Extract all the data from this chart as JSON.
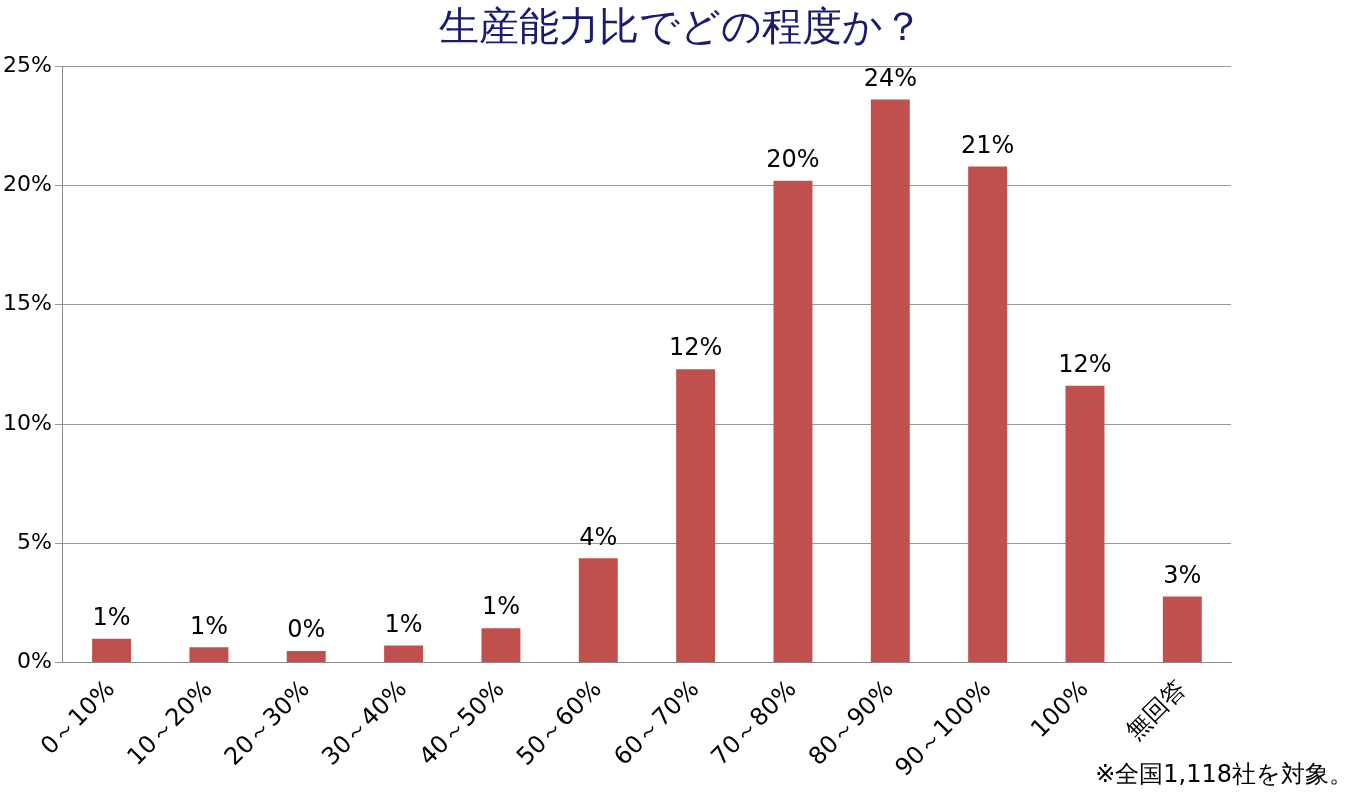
{
  "chart_data": {
    "type": "bar",
    "title": "生産能力比でどの程度か？",
    "categories": [
      "0～10%",
      "10～20%",
      "20～30%",
      "30～40%",
      "40～50%",
      "50～60%",
      "60～70%",
      "70～80%",
      "80～90%",
      "90～100%",
      "100%",
      "無回答"
    ],
    "values": [
      1.0,
      0.64,
      0.48,
      0.72,
      1.44,
      4.37,
      12.3,
      20.2,
      23.6,
      20.8,
      11.6,
      2.77
    ],
    "value_labels": [
      "1%",
      "1%",
      "0%",
      "1%",
      "1%",
      "4%",
      "12%",
      "20%",
      "24%",
      "21%",
      "12%",
      "3%"
    ],
    "color": "#c0504d",
    "ylim": [
      0,
      25
    ],
    "yticks": [
      {
        "value": 0,
        "label": "0%"
      },
      {
        "value": 5,
        "label": "5%"
      },
      {
        "value": 10,
        "label": "10%"
      },
      {
        "value": 15,
        "label": "15%"
      },
      {
        "value": 20,
        "label": "20%"
      },
      {
        "value": 25,
        "label": "25%"
      }
    ],
    "grid": "y",
    "legend": false,
    "annotations": [
      "※全国1,118社を対象。"
    ]
  }
}
